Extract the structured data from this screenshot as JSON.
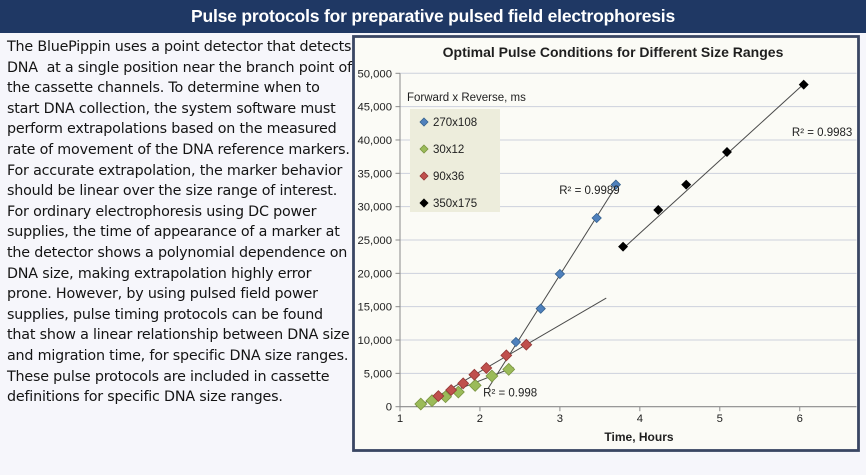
{
  "header": {
    "title": "Pulse protocols for preparative pulsed field electrophoresis"
  },
  "body_text": "The BluePippin uses a point detector that detects DNA  at a single position near the branch point of the cassette channels. To determine when to start DNA collection, the system software must perform extrapolations based on the measured rate of movement of the DNA reference markers. For accurate extrapolation, the marker behavior should be linear over the size range of interest. For ordinary electrophoresis using DC power supplies, the time of appearance of a marker at the detector shows a polynomial dependence on DNA size, making extrapolation highly error prone. However, by using pulsed field power supplies, pulse timing protocols can be found that show a linear relationship between DNA size and migration time, for specific DNA size ranges.  These pulse protocols are included in cassette definitions for specific DNA size ranges.",
  "colors": {
    "title_bar_bg": "#1F3864",
    "title_bar_text": "#FFFFFF",
    "page_bg": "#F6F6FB",
    "panel_bg": "#FBFBF6",
    "panel_border": "#3A4663",
    "gridline": "#CDD1DC",
    "axis": "#8A8A8A",
    "legend_bg": "#EDEDDC",
    "trendline": "#4A4A4A",
    "text": "#1A1A1A"
  },
  "chart_data": {
    "type": "scatter",
    "title": "Optimal Pulse Conditions for Different Size Ranges",
    "xlabel": "Time, Hours",
    "ylabel": "",
    "xlim": [
      1,
      6.71
    ],
    "ylim": [
      0,
      50000
    ],
    "x_ticks": [
      1,
      2,
      3,
      4,
      5,
      6
    ],
    "x_tick_labels": [
      "1",
      "2",
      "3",
      "4",
      "5",
      "6"
    ],
    "y_ticks": [
      0,
      5000,
      10000,
      15000,
      20000,
      25000,
      30000,
      35000,
      40000,
      45000,
      50000
    ],
    "y_tick_labels": [
      "0",
      "5,000",
      "10,000",
      "15,000",
      "20,000",
      "25,000",
      "30,000",
      "35,000",
      "40,000",
      "45,000",
      "50,000"
    ],
    "grid": true,
    "legend": {
      "title": "Forward x Reverse, ms",
      "position": "upper-left",
      "items": [
        "270x108",
        "30x12",
        "90x36",
        "350x175"
      ]
    },
    "series": [
      {
        "name": "270x108",
        "color": "#4F81BD",
        "edge": "#35618E",
        "x": [
          2.45,
          2.76,
          3.0,
          3.46,
          3.7
        ],
        "y": [
          9700,
          14700,
          19900,
          28300,
          33300
        ],
        "trend": [
          2.1,
          2700,
          3.73,
          33600
        ],
        "r2": {
          "text": "R² = 0.9989",
          "x": 3.37,
          "y": 32500,
          "anchor": "middle"
        }
      },
      {
        "name": "30x12",
        "color": "#9BBB59",
        "edge": "#7A9440",
        "x": [
          1.26,
          1.4,
          1.57,
          1.73,
          1.94,
          2.15,
          2.36
        ],
        "y": [
          400,
          900,
          1500,
          2200,
          3200,
          4600,
          5600
        ],
        "trend": [
          1.2,
          100,
          2.42,
          5900
        ],
        "r2": {
          "text": "R² = 0.998",
          "x": 2.04,
          "y": 2100,
          "anchor": "start"
        }
      },
      {
        "name": "90x36",
        "color": "#C0504D",
        "edge": "#943634",
        "x": [
          1.48,
          1.64,
          1.79,
          1.93,
          2.08,
          2.33,
          2.58
        ],
        "y": [
          1600,
          2500,
          3500,
          4800,
          5800,
          7700,
          9300
        ],
        "trend": [
          1.42,
          1200,
          3.58,
          16300
        ],
        "r2": null
      },
      {
        "name": "350x175",
        "color": "#000000",
        "edge": "#000000",
        "x": [
          3.79,
          4.23,
          4.58,
          5.09,
          6.05
        ],
        "y": [
          24000,
          29500,
          33300,
          38200,
          48300
        ],
        "trend": [
          3.78,
          23600,
          6.06,
          48500
        ],
        "r2": {
          "text": "R² = 0.9983",
          "x": 6.28,
          "y": 41200,
          "anchor": "middle"
        }
      }
    ]
  }
}
